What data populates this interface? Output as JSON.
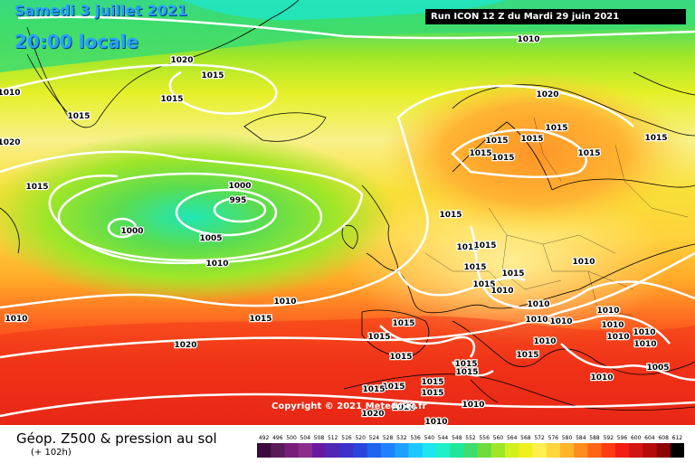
{
  "header": {
    "date": "Samedi 3 juillet 2021",
    "time": "20:00 locale",
    "run": "Run ICON 12 Z du Mardi 29 juin 2021"
  },
  "copyright": "Copyright © 2021 Meteociel.fr",
  "footer": {
    "title": "Géop. Z500 & pression au sol",
    "subtitle": "(+ 102h)"
  },
  "scale": {
    "ticks": [
      "492",
      "496",
      "500",
      "504",
      "508",
      "512",
      "516",
      "520",
      "524",
      "528",
      "532",
      "536",
      "540",
      "544",
      "548",
      "552",
      "556",
      "560",
      "564",
      "568",
      "572",
      "576",
      "580",
      "584",
      "588",
      "592",
      "596",
      "600",
      "604",
      "608",
      "612"
    ],
    "colors": [
      "#3c0a3c",
      "#5a1a5a",
      "#781e78",
      "#8c2d8c",
      "#6a1aa0",
      "#5028b4",
      "#3c32c8",
      "#2846dc",
      "#1e64f0",
      "#1e82ff",
      "#1ea0ff",
      "#1ec8ff",
      "#1ee6f0",
      "#1ef0c8",
      "#1ee69b",
      "#3cdc6e",
      "#6edc3c",
      "#a0e628",
      "#d2f01e",
      "#f0f01e",
      "#fff050",
      "#ffd73c",
      "#ffb428",
      "#ff8c1e",
      "#ff6414",
      "#ff3c14",
      "#f01e14",
      "#d21414",
      "#b40a0a",
      "#8c0505",
      "#000000"
    ]
  },
  "isobars": [
    {
      "label": "1010",
      "pos": "top-center"
    },
    {
      "label": "1020",
      "pos": "greenland"
    },
    {
      "label": "1015",
      "pos": "greenland"
    },
    {
      "label": "1015",
      "pos": "greenland"
    },
    {
      "label": "1010",
      "pos": "west"
    },
    {
      "label": "1015",
      "pos": "west"
    },
    {
      "label": "1015",
      "pos": "west"
    },
    {
      "label": "1000",
      "pos": "low-west"
    },
    {
      "label": "1000",
      "pos": "low-center"
    },
    {
      "label": "995",
      "pos": "low-center"
    },
    {
      "label": "1005",
      "pos": "low"
    },
    {
      "label": "1010",
      "pos": "low"
    },
    {
      "label": "1010",
      "pos": "atlantic"
    },
    {
      "label": "1015",
      "pos": "atlantic"
    },
    {
      "label": "1010",
      "pos": "southwest"
    },
    {
      "label": "1020",
      "pos": "southwest"
    },
    {
      "label": "1020",
      "pos": "norway"
    },
    {
      "label": "1015",
      "pos": "scandinavia"
    },
    {
      "label": "1015",
      "pos": "scandinavia"
    },
    {
      "label": "1015",
      "pos": "scandinavia"
    },
    {
      "label": "1015",
      "pos": "scandinavia"
    },
    {
      "label": "1015",
      "pos": "scandinavia"
    },
    {
      "label": "1015",
      "pos": "scandinavia"
    },
    {
      "label": "1015",
      "pos": "russia"
    },
    {
      "label": "1015",
      "pos": "north-sea"
    },
    {
      "label": "1015",
      "pos": "europe"
    },
    {
      "label": "1015",
      "pos": "europe"
    },
    {
      "label": "1015",
      "pos": "europe"
    },
    {
      "label": "1015",
      "pos": "europe"
    },
    {
      "label": "1015",
      "pos": "europe"
    },
    {
      "label": "1010",
      "pos": "europe"
    },
    {
      "label": "1010",
      "pos": "europe"
    },
    {
      "label": "1010",
      "pos": "europe"
    },
    {
      "label": "1010",
      "pos": "balkans"
    },
    {
      "label": "1010",
      "pos": "balkans"
    },
    {
      "label": "1010",
      "pos": "balkans"
    },
    {
      "label": "1010",
      "pos": "east"
    },
    {
      "label": "1010",
      "pos": "east"
    },
    {
      "label": "1010",
      "pos": "east"
    },
    {
      "label": "1010",
      "pos": "east"
    },
    {
      "label": "1010",
      "pos": "east"
    },
    {
      "label": "1005",
      "pos": "east"
    },
    {
      "label": "1015",
      "pos": "balkans"
    },
    {
      "label": "1015",
      "pos": "iberia"
    },
    {
      "label": "1015",
      "pos": "iberia"
    },
    {
      "label": "1015",
      "pos": "iberia"
    },
    {
      "label": "1015",
      "pos": "med"
    },
    {
      "label": "1015",
      "pos": "med"
    },
    {
      "label": "1015",
      "pos": "med"
    },
    {
      "label": "1015",
      "pos": "med"
    },
    {
      "label": "1015",
      "pos": "med"
    },
    {
      "label": "1015",
      "pos": "med"
    },
    {
      "label": "1010",
      "pos": "med"
    },
    {
      "label": "1010",
      "pos": "east-med"
    },
    {
      "label": "1020",
      "pos": "africa"
    },
    {
      "label": "1010",
      "pos": "africa"
    },
    {
      "label": "1010",
      "pos": "africa"
    },
    {
      "label": "1020",
      "pos": "atlantic-south"
    }
  ]
}
